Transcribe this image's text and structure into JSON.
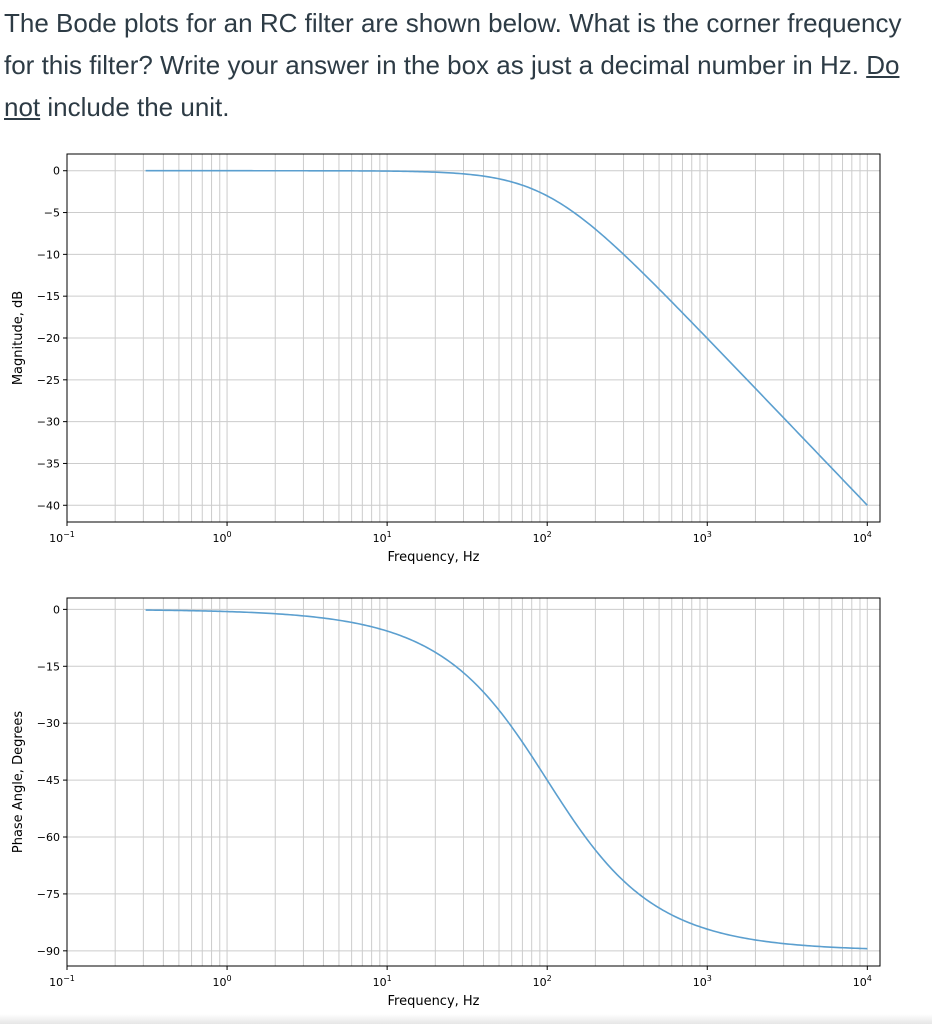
{
  "question": {
    "part1": "The Bode plots for an RC filter are shown below. What is the corner frequency for this filter? Write your answer in the box as just a decimal number in Hz. ",
    "emphasis": "Do not",
    "part2": " include the unit."
  },
  "colors": {
    "line": "#5b9fcf",
    "grid": "#cccccc",
    "axes": "#000000"
  },
  "chart_data": [
    {
      "type": "line",
      "title": "",
      "xlabel": "Frequency, Hz",
      "ylabel": "Magnitude, dB",
      "xscale": "log",
      "xlim": [
        0.1,
        12000
      ],
      "ylim": [
        -42,
        2
      ],
      "xticks": [
        0.1,
        1,
        10,
        100,
        1000,
        10000
      ],
      "xtick_labels": [
        [
          "10",
          "−1"
        ],
        [
          "10",
          "0"
        ],
        [
          "10",
          "1"
        ],
        [
          "10",
          "2"
        ],
        [
          "10",
          "3"
        ],
        [
          "10",
          "4"
        ]
      ],
      "yticks": [
        0,
        -5,
        -10,
        -15,
        -20,
        -25,
        -30,
        -35,
        -40
      ],
      "ytick_labels": [
        "0",
        "−5",
        "−10",
        "−15",
        "−20",
        "−25",
        "−30",
        "−35",
        "−40"
      ],
      "grid": true,
      "series": [
        {
          "kind": "magnitude",
          "corner_frequency": 100,
          "x": [
            0.31,
            1,
            3,
            10,
            20,
            40,
            60,
            80,
            100,
            150,
            200,
            300,
            500,
            1000,
            2000,
            5000,
            10000
          ],
          "y": [
            0,
            0,
            -0.004,
            -0.04,
            -0.17,
            -0.64,
            -1.34,
            -2.15,
            -3.01,
            -5.12,
            -6.99,
            -10.0,
            -14.15,
            -20.04,
            -26.03,
            -33.98,
            -40.0
          ]
        }
      ]
    },
    {
      "type": "line",
      "title": "",
      "xlabel": "Frequency, Hz",
      "ylabel": "Phase Angle, Degrees",
      "xscale": "log",
      "xlim": [
        0.1,
        12000
      ],
      "ylim": [
        -94,
        3
      ],
      "xticks": [
        0.1,
        1,
        10,
        100,
        1000,
        10000
      ],
      "xtick_labels": [
        [
          "10",
          "−1"
        ],
        [
          "10",
          "0"
        ],
        [
          "10",
          "1"
        ],
        [
          "10",
          "2"
        ],
        [
          "10",
          "3"
        ],
        [
          "10",
          "4"
        ]
      ],
      "yticks": [
        0,
        -15,
        -30,
        -45,
        -60,
        -75,
        -90
      ],
      "ytick_labels": [
        "0",
        "−15",
        "−30",
        "−45",
        "−60",
        "−75",
        "−90"
      ],
      "grid": true,
      "series": [
        {
          "kind": "phase",
          "corner_frequency": 100,
          "x": [
            0.31,
            1,
            3,
            10,
            20,
            30,
            50,
            70,
            100,
            150,
            200,
            300,
            500,
            1000,
            2000,
            5000,
            10000
          ],
          "y": [
            -0.18,
            -0.57,
            -1.72,
            -5.71,
            -11.31,
            -16.7,
            -26.57,
            -34.99,
            -45.0,
            -56.31,
            -63.43,
            -71.57,
            -78.69,
            -84.29,
            -87.14,
            -88.85,
            -89.43
          ]
        }
      ]
    }
  ]
}
